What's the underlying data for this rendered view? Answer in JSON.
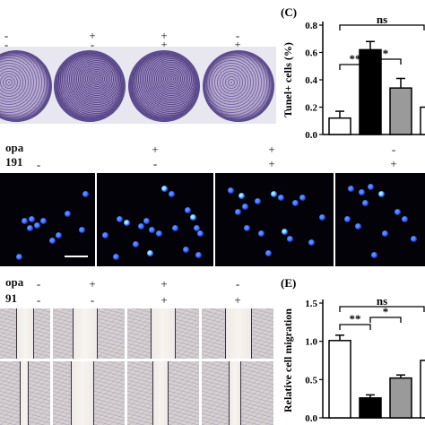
{
  "top_rows": {
    "row1": [
      "-",
      "+",
      "+",
      "-"
    ],
    "row2": [
      "-",
      "-",
      "+",
      "+"
    ]
  },
  "mid_labels": {
    "drug": "opa",
    "inhibitor": "191"
  },
  "mid_rows": {
    "row1": [
      "+",
      "+",
      "-"
    ],
    "row2": [
      "-",
      "+",
      "+"
    ]
  },
  "bottom_labels": {
    "drug": "opa",
    "inhibitor": "91"
  },
  "bottom_rows": {
    "row1": [
      "-",
      "+",
      "+",
      "-"
    ],
    "row2": [
      "-",
      "-",
      "+",
      "+"
    ]
  },
  "chart_data": [
    {
      "type": "bar",
      "panel_label": "(C)",
      "ylabel": "Tunel+ cells (%)",
      "ylim": [
        0.0,
        0.8
      ],
      "yticks": [
        "0.0",
        "0.2",
        "0.4",
        "0.6",
        "0.8"
      ],
      "values": [
        0.12,
        0.62,
        0.34,
        0.2
      ],
      "errors": [
        0.05,
        0.06,
        0.07,
        0.06
      ],
      "fills": [
        "#ffffff",
        "#000000",
        "#9a9a9a",
        "#ffffff"
      ],
      "annotations": [
        "**",
        "*",
        "ns"
      ]
    },
    {
      "type": "bar",
      "panel_label": "(E)",
      "ylabel": "Relative cell migration",
      "ylim": [
        0.0,
        1.5
      ],
      "yticks": [
        "0.0",
        "0.5",
        "1.0",
        "1.5"
      ],
      "values": [
        1.01,
        0.26,
        0.52,
        0.75
      ],
      "errors": [
        0.07,
        0.04,
        0.04,
        0.06
      ],
      "fills": [
        "#ffffff",
        "#000000",
        "#9a9a9a",
        "#ffffff"
      ],
      "annotations": [
        "**",
        "*",
        "ns"
      ]
    }
  ]
}
